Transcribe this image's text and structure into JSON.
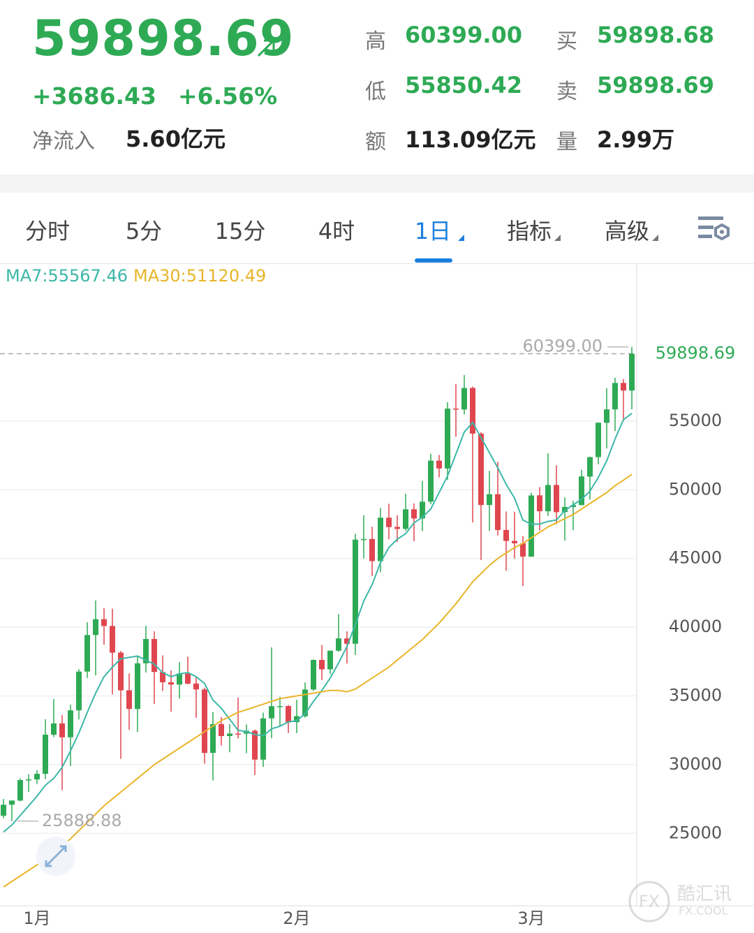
{
  "quote": {
    "price": "59898.69",
    "change": "+3686.43",
    "change_pct": "+6.56%",
    "net_inflow_label": "净流入",
    "net_inflow": "5.60亿元",
    "stats": [
      {
        "label": "高",
        "value": "60399.00"
      },
      {
        "label": "买",
        "value": "59898.68"
      },
      {
        "label": "低",
        "value": "55850.42"
      },
      {
        "label": "卖",
        "value": "59898.69"
      },
      {
        "label": "额",
        "value": "113.09亿元"
      },
      {
        "label": "量",
        "value": "2.99万"
      }
    ]
  },
  "tabs": {
    "items": [
      "分时",
      "5分",
      "15分",
      "4时",
      "1日",
      "指标",
      "高级"
    ],
    "active": 4
  },
  "watermark": {
    "logo": "FX",
    "name": "酷汇讯",
    "domain": "FX.COOL"
  },
  "chart_data": {
    "type": "candlestick",
    "categories": [
      null,
      null,
      null,
      null,
      "1月",
      null,
      null,
      null,
      null,
      null,
      null,
      null,
      null,
      null,
      null,
      null,
      null,
      null,
      null,
      null,
      null,
      null,
      null,
      null,
      null,
      null,
      null,
      null,
      null,
      null,
      null,
      null,
      null,
      null,
      null,
      "2月",
      null,
      null,
      null,
      null,
      null,
      null,
      null,
      null,
      null,
      null,
      null,
      null,
      null,
      null,
      null,
      null,
      null,
      null,
      null,
      null,
      null,
      null,
      null,
      null,
      null,
      null,
      null,
      "3月",
      null,
      null,
      null,
      null,
      null,
      null,
      null,
      null,
      null,
      null,
      null,
      null
    ],
    "open": [
      26281,
      27079,
      27385,
      28875,
      28923,
      29331,
      32178,
      33000,
      31989,
      33950,
      36769,
      39432,
      40586,
      40088,
      38150,
      35410,
      34050,
      37372,
      39141,
      36737,
      35994,
      35825,
      36622,
      35901,
      35468,
      30852,
      32950,
      32078,
      32259,
      32251,
      32464,
      30362,
      33368,
      34246,
      34262,
      33092,
      33518,
      35467,
      37619,
      36937,
      38290,
      39181,
      38795,
      46374,
      46420,
      44807,
      47969,
      47298,
      47156,
      48581,
      47911,
      49134,
      52119,
      51551,
      55906,
      55841,
      57412,
      54088,
      48891,
      49677,
      47073,
      46277,
      46103,
      45134,
      49596,
      48436,
      50349,
      48375,
      48747,
      48882,
      50959,
      52376,
      54874,
      55851,
      57773,
      57221
    ],
    "high": [
      27500,
      27400,
      28999,
      29300,
      29600,
      33300,
      34778,
      33600,
      34360,
      36939,
      40365,
      41950,
      41380,
      41350,
      38264,
      36628,
      37850,
      40100,
      39700,
      37950,
      36852,
      37469,
      37850,
      36415,
      35600,
      33826,
      33456,
      32945,
      34875,
      32921,
      32557,
      33783,
      38531,
      34933,
      34342,
      34717,
      35984,
      37662,
      38708,
      38310,
      40955,
      39700,
      46794,
      48142,
      47310,
      48678,
      48985,
      48150,
      49707,
      49010,
      50641,
      52618,
      52530,
      56368,
      57700,
      58352,
      57508,
      54183,
      51374,
      52041,
      48424,
      48395,
      46638,
      49790,
      50200,
      52640,
      51773,
      49448,
      49200,
      51450,
      52402,
      54900,
      57387,
      58150,
      58058,
      60399
    ],
    "low": [
      26100,
      25888.88,
      27320,
      28000,
      28600,
      28946,
      32000,
      28130,
      29900,
      33288,
      36300,
      36500,
      38720,
      35111,
      30420,
      32531,
      32380,
      36701,
      34408,
      35357,
      33850,
      34800,
      35844,
      33400,
      30071,
      28850,
      31390,
      30900,
      31910,
      30837,
      29241,
      29842,
      31915,
      32825,
      32300,
      32296,
      33418,
      35362,
      36161,
      36570,
      38215,
      37351,
      37988,
      45000,
      43727,
      43994,
      46400,
      46202,
      47014,
      46250,
      47002,
      48948,
      50901,
      50710,
      53863,
      55477,
      47622,
      44892,
      47003,
      46674,
      44106,
      45000,
      43000,
      45115,
      47047,
      48100,
      47500,
      46300,
      47070,
      48882,
      49274,
      51846,
      53005,
      54272,
      55013,
      55850.42
    ],
    "close": [
      27079,
      27385,
      28875,
      28923,
      29331,
      32178,
      33000,
      31988,
      33949,
      36769,
      39432,
      40582,
      40088,
      38150,
      35404,
      34051,
      37371,
      39144,
      36742,
      35994,
      35828,
      36631,
      35891,
      35468,
      30850,
      32945,
      32078,
      32259,
      32254,
      32467,
      30366,
      33364,
      34252,
      34262,
      33092,
      33526,
      35466,
      37618,
      36936,
      38290,
      39186,
      38795,
      46374,
      46420,
      44807,
      47969,
      47287,
      47153,
      48577,
      47911,
      49133,
      52119,
      51552,
      55906,
      55841,
      57408,
      54087,
      48891,
      49676,
      47073,
      46277,
      46106,
      45135,
      49587,
      48440,
      50349,
      48374,
      48751,
      48882,
      50971,
      52375,
      54884,
      55851,
      57773,
      57221,
      59898.69
    ],
    "up_color": "#2eaa55",
    "down_color": "#e0464f",
    "series": [
      {
        "label": "MA7:55567.46",
        "color": "#3cb7a7",
        "values": [
          25100,
          25600,
          26300,
          27000,
          27700,
          28500,
          29000,
          29800,
          31000,
          32300,
          33800,
          35200,
          36400,
          37100,
          37700,
          37800,
          37900,
          37600,
          37300,
          36700,
          36400,
          36600,
          36700,
          36400,
          35900,
          34700,
          34100,
          33300,
          32500,
          32400,
          32200,
          32100,
          32600,
          32800,
          33100,
          33200,
          33700,
          34600,
          35400,
          36300,
          37400,
          38600,
          40200,
          41900,
          43100,
          44700,
          45800,
          46400,
          46800,
          47600,
          48000,
          48600,
          49800,
          51000,
          52600,
          54200,
          54900,
          53800,
          52700,
          51600,
          50400,
          49400,
          47800,
          47500,
          47500,
          47700,
          47800,
          48500,
          48900,
          49300,
          49900,
          50900,
          52100,
          53700,
          55100,
          55567.46
        ]
      },
      {
        "label": "MA30:51120.49",
        "color": "#e8b52a",
        "values": [
          21100,
          21500,
          21900,
          22300,
          22700,
          23100,
          23600,
          24100,
          24600,
          25200,
          25800,
          26400,
          27000,
          27500,
          28000,
          28500,
          29000,
          29500,
          30000,
          30400,
          30800,
          31200,
          31600,
          32000,
          32400,
          32800,
          33200,
          33500,
          33800,
          34000,
          34200,
          34400,
          34600,
          34800,
          34900,
          35000,
          35100,
          35200,
          35300,
          35400,
          35400,
          35300,
          35500,
          35900,
          36300,
          36700,
          37100,
          37600,
          38100,
          38600,
          39100,
          39700,
          40300,
          41000,
          41700,
          42500,
          43300,
          43900,
          44500,
          45000,
          45400,
          45800,
          46100,
          46500,
          46900,
          47300,
          47600,
          47900,
          48200,
          48600,
          49000,
          49400,
          49800,
          50300,
          50700,
          51120.49
        ]
      }
    ],
    "annotations": [
      {
        "label": "60399.00",
        "value": 60399,
        "index": 75
      },
      {
        "label": "25888.88",
        "value": 25888.88,
        "index": 1
      }
    ],
    "ylim": [
      19830,
      66330
    ],
    "yticks": [
      25000,
      30000,
      35000,
      40000,
      45000,
      50000,
      55000
    ],
    "grid": true
  }
}
